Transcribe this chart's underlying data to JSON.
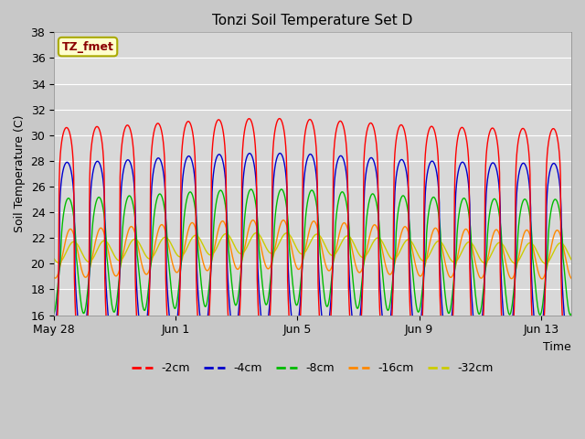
{
  "title": "Tonzi Soil Temperature Set D",
  "xlabel": "Time",
  "ylabel": "Soil Temperature (C)",
  "ylim": [
    16,
    38
  ],
  "annotation": "TZ_fmet",
  "series_labels": [
    "-2cm",
    "-4cm",
    "-8cm",
    "-16cm",
    "-32cm"
  ],
  "series_colors": [
    "#ff0000",
    "#0000cc",
    "#00bb00",
    "#ff8800",
    "#cccc00"
  ],
  "bg_color": "#d8d8d8",
  "plot_bg_color": "#d8d8d8",
  "xtick_labels": [
    "May 28",
    "Jun 1",
    "Jun 5",
    "Jun 9",
    "Jun 13"
  ],
  "yticks": [
    16,
    18,
    20,
    22,
    24,
    26,
    28,
    30,
    32,
    34,
    36,
    38
  ],
  "n_days": 17.0,
  "params": [
    {
      "amp": 9.5,
      "phase": 1.0,
      "sharp": 5.0,
      "base_off": 0.5,
      "min_floor": 17.0
    },
    {
      "amp": 7.0,
      "phase": 1.1,
      "sharp": 4.0,
      "base_off": 0.3,
      "min_floor": 18.5
    },
    {
      "amp": 4.5,
      "phase": 1.4,
      "sharp": 2.0,
      "base_off": 0.0,
      "min_floor": 19.5
    },
    {
      "amp": 1.9,
      "phase": 1.8,
      "sharp": 1.0,
      "base_off": 0.2,
      "min_floor": 20.0
    },
    {
      "amp": 0.8,
      "phase": 2.5,
      "sharp": 1.0,
      "base_off": 0.3,
      "min_floor": 20.0
    }
  ]
}
